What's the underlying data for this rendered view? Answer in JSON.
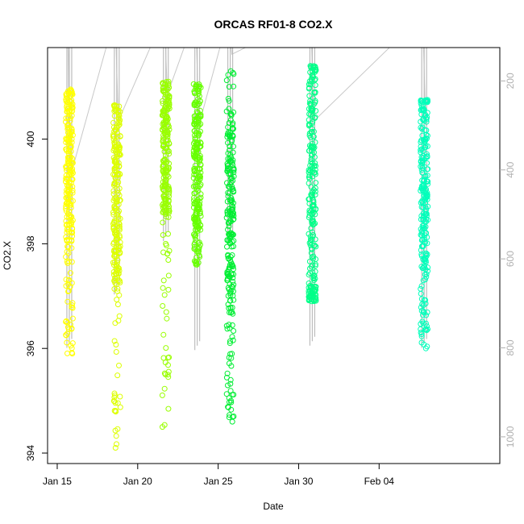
{
  "chart_data": {
    "type": "scatter",
    "title": "ORCAS RF01-8 CO2.X",
    "xlabel": "Date",
    "ylabel": "CO2.X",
    "x_axis": {
      "min_day": 14.4,
      "max_day": 42.5,
      "ticks": [
        {
          "day": 15,
          "label": "Jan 15"
        },
        {
          "day": 20,
          "label": "Jan 20"
        },
        {
          "day": 25,
          "label": "Jan 25"
        },
        {
          "day": 30,
          "label": "Jan 30"
        },
        {
          "day": 35,
          "label": "Feb 04"
        }
      ]
    },
    "ylim": [
      393.8,
      401.75
    ],
    "y_ticks": [
      394,
      396,
      398,
      400
    ],
    "right_axis": {
      "color": "#b0b0b0",
      "lim": [
        1060,
        125
      ],
      "ticks": [
        200,
        400,
        600,
        800,
        1000
      ]
    },
    "series": [
      {
        "day": 15.75,
        "color": "#ffff00",
        "core": [
          398.0,
          400.85
        ],
        "range": [
          395.9,
          400.95
        ],
        "ref": [
          410,
          800
        ]
      },
      {
        "day": 18.7,
        "color": "#ddff00",
        "core": [
          397.2,
          400.5
        ],
        "range": [
          394.1,
          400.65
        ],
        "ref": [
          290,
          680
        ]
      },
      {
        "day": 21.75,
        "color": "#99ff00",
        "core": [
          398.5,
          401.05
        ],
        "range": [
          394.5,
          401.1
        ],
        "ref": [
          230,
          560
        ]
      },
      {
        "day": 23.7,
        "color": "#66ff00",
        "core": [
          398.2,
          400.9
        ],
        "range": [
          397.6,
          401.05
        ],
        "ref": [
          300,
          805
        ]
      },
      {
        "day": 25.75,
        "color": "#00ee33",
        "core": [
          396.6,
          400.5
        ],
        "range": [
          394.6,
          401.3
        ],
        "ref": [
          140,
          560
        ]
      },
      {
        "day": 30.85,
        "color": "#00ff88",
        "core": [
          397.2,
          401.3
        ],
        "range": [
          396.9,
          401.4
        ],
        "ref": [
          290,
          795
        ]
      },
      {
        "day": 37.8,
        "color": "#00ffbb",
        "core": [
          397.4,
          400.7
        ],
        "range": [
          396.0,
          400.75
        ],
        "ref": [
          300,
          800
        ]
      }
    ]
  }
}
